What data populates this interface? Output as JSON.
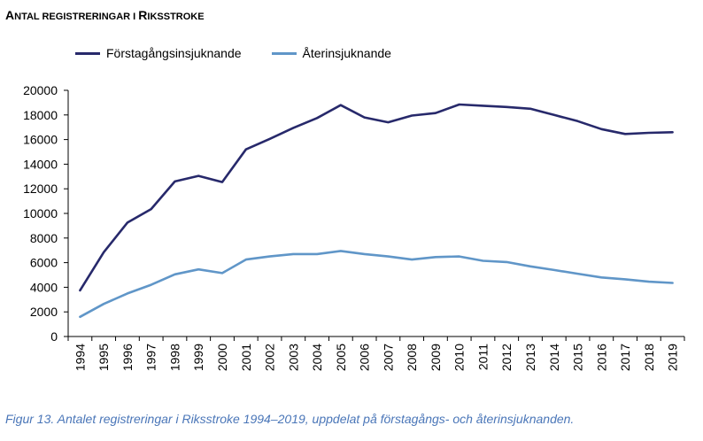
{
  "title": "Antal registreringar i Riksstroke",
  "caption": "Figur 13. Antalet registreringar i Riksstroke 1994–2019, uppdelat på förstagångs- och återinsjuknanden.",
  "colors": {
    "series1": "#27296b",
    "series2": "#6096c8",
    "axis": "#000000"
  },
  "chart_data": {
    "type": "line",
    "title": "Antal registreringar i Riksstroke",
    "xlabel": "",
    "ylabel": "",
    "ylim": [
      0,
      20000
    ],
    "yticks": [
      0,
      2000,
      4000,
      6000,
      8000,
      10000,
      12000,
      14000,
      16000,
      18000,
      20000
    ],
    "grid": false,
    "legend": "top-left",
    "x": [
      "1994",
      "1995",
      "1996",
      "1997",
      "1998",
      "1999",
      "2000",
      "2001",
      "2002",
      "2003",
      "2004",
      "2005",
      "2006",
      "2007",
      "2008",
      "2009",
      "2010",
      "2011",
      "2012",
      "2013",
      "2014",
      "2015",
      "2016",
      "2017",
      "2018",
      "2019"
    ],
    "series": [
      {
        "name": "Förstagångsinsjuknande",
        "color": "#27296b",
        "values": [
          3750,
          6850,
          9250,
          10350,
          12600,
          13050,
          12550,
          15200,
          16050,
          16950,
          17750,
          18800,
          17800,
          17400,
          17950,
          18150,
          18850,
          18750,
          18650,
          18500,
          18000,
          17500,
          16850,
          16450,
          16550,
          16600
        ]
      },
      {
        "name": "Återinsjuknande",
        "color": "#6096c8",
        "values": [
          1600,
          2650,
          3500,
          4200,
          5050,
          5450,
          5150,
          6250,
          6500,
          6700,
          6700,
          6950,
          6700,
          6500,
          6250,
          6450,
          6500,
          6150,
          6050,
          5700,
          5400,
          5100,
          4800,
          4650,
          4450,
          4350
        ]
      }
    ]
  }
}
